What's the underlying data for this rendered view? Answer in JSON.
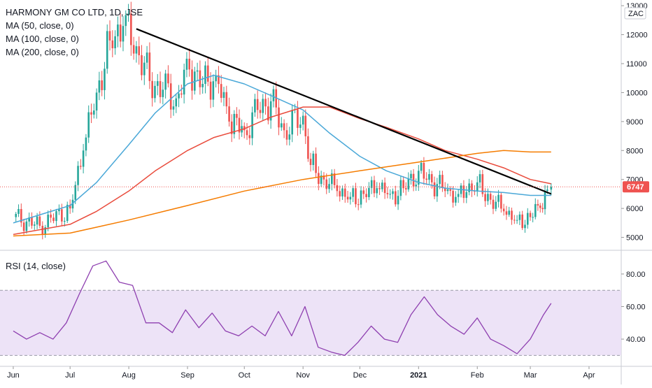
{
  "legend": {
    "title": "HARMONY GM CO LTD, 1D, JSE",
    "ma50": "MA (50, close, 0)",
    "ma100": "MA (100, close, 0)",
    "ma200": "MA (200, close, 0)",
    "rsi": "RSI (14, close)"
  },
  "currency": "ZAC",
  "last_price_label": "6747",
  "colors": {
    "up": "#26a69a",
    "down": "#ef5350",
    "ma50": "#4aa8d8",
    "ma100": "#e94b3c",
    "ma200": "#f57c00",
    "trendline": "#000000",
    "rsi_line": "#8e3fb0",
    "rsi_band": "#e9dcf5",
    "price_tag": "#ef5350"
  },
  "chart_data": [
    {
      "type": "candlestick",
      "x_axis": {
        "labels": [
          "Jun",
          "Jul",
          "Aug",
          "Sep",
          "Oct",
          "Nov",
          "Dec",
          "2021",
          "Feb",
          "Mar",
          "Apr"
        ],
        "dates": [
          "2020-06-01",
          "2020-07-01",
          "2020-08-01",
          "2020-09-01",
          "2020-10-01",
          "2020-11-01",
          "2020-12-01",
          "2021-01-01",
          "2021-02-01",
          "2021-03-01",
          "2021-04-01"
        ]
      },
      "y_ticks": [
        5000,
        6000,
        7000,
        8000,
        9000,
        10000,
        11000,
        12000,
        13000
      ],
      "ylim": [
        4700,
        13100
      ],
      "last_price": 6747,
      "close": {
        "dates": [
          "2020-06-01",
          "2020-06-15",
          "2020-07-01",
          "2020-07-08",
          "2020-07-15",
          "2020-07-22",
          "2020-07-29",
          "2020-08-05",
          "2020-08-12",
          "2020-08-19",
          "2020-08-26",
          "2020-09-02",
          "2020-09-09",
          "2020-09-16",
          "2020-09-23",
          "2020-10-01",
          "2020-10-08",
          "2020-10-15",
          "2020-10-22",
          "2020-11-01",
          "2020-11-05",
          "2020-11-12",
          "2020-11-19",
          "2020-11-26",
          "2020-12-03",
          "2020-12-10",
          "2020-12-17",
          "2020-12-24",
          "2021-01-01",
          "2021-01-08",
          "2021-01-15",
          "2021-01-22",
          "2021-02-01",
          "2021-02-08",
          "2021-02-15",
          "2021-02-22",
          "2021-03-01",
          "2021-03-05",
          "2021-03-10",
          "2021-03-12"
        ],
        "values": [
          5700,
          5400,
          6000,
          8000,
          10000,
          11800,
          12300,
          11600,
          10400,
          10100,
          9800,
          10800,
          10300,
          10600,
          9000,
          8700,
          9400,
          9700,
          8700,
          9200,
          7500,
          7000,
          6600,
          6400,
          6500,
          6700,
          6500,
          6700,
          7300,
          6900,
          6600,
          6500,
          6900,
          6300,
          5900,
          5600,
          5700,
          6100,
          6650,
          6747
        ]
      },
      "series": [
        {
          "name": "MA (50, close, 0)",
          "x": [
            "2020-06-01",
            "2020-07-01",
            "2020-07-15",
            "2020-08-01",
            "2020-08-15",
            "2020-09-01",
            "2020-09-15",
            "2020-10-01",
            "2020-10-15",
            "2020-11-01",
            "2020-11-15",
            "2020-12-01",
            "2020-12-15",
            "2021-01-01",
            "2021-01-15",
            "2021-02-01",
            "2021-02-15",
            "2021-03-01",
            "2021-03-12"
          ],
          "values": [
            5500,
            6100,
            6900,
            8200,
            9300,
            10300,
            10600,
            10300,
            9900,
            9400,
            8600,
            7800,
            7300,
            6900,
            6700,
            6600,
            6550,
            6450,
            6450
          ]
        },
        {
          "name": "MA (100, close, 0)",
          "x": [
            "2020-06-01",
            "2020-07-01",
            "2020-07-15",
            "2020-08-01",
            "2020-08-15",
            "2020-09-01",
            "2020-09-15",
            "2020-10-01",
            "2020-10-15",
            "2020-11-01",
            "2020-11-15",
            "2020-12-01",
            "2020-12-15",
            "2021-01-01",
            "2021-01-15",
            "2021-02-01",
            "2021-02-15",
            "2021-03-01",
            "2021-03-12"
          ],
          "values": [
            5100,
            5450,
            5900,
            6600,
            7300,
            8000,
            8450,
            8750,
            9150,
            9500,
            9500,
            9100,
            8800,
            8400,
            8000,
            7700,
            7400,
            7000,
            6850
          ]
        },
        {
          "name": "MA (200, close, 0)",
          "x": [
            "2020-06-01",
            "2020-07-01",
            "2020-08-01",
            "2020-09-01",
            "2020-10-01",
            "2020-11-01",
            "2020-12-01",
            "2021-01-01",
            "2021-02-01",
            "2021-02-15",
            "2021-03-01",
            "2021-03-12"
          ],
          "values": [
            5050,
            5150,
            5600,
            6100,
            6600,
            7000,
            7300,
            7600,
            7900,
            8000,
            7950,
            7950
          ]
        },
        {
          "name": "Trendline",
          "x": [
            "2020-08-05",
            "2021-03-12"
          ],
          "values": [
            12200,
            6500
          ]
        }
      ]
    },
    {
      "type": "line",
      "y_ticks": [
        40,
        60,
        80
      ],
      "ylim": [
        25,
        92
      ],
      "bands": [
        30,
        70
      ],
      "series": [
        {
          "name": "RSI (14, close)",
          "x": [
            "2020-06-01",
            "2020-06-08",
            "2020-06-15",
            "2020-06-22",
            "2020-06-29",
            "2020-07-06",
            "2020-07-13",
            "2020-07-20",
            "2020-07-27",
            "2020-08-03",
            "2020-08-10",
            "2020-08-17",
            "2020-08-24",
            "2020-08-31",
            "2020-09-07",
            "2020-09-14",
            "2020-09-21",
            "2020-09-28",
            "2020-10-05",
            "2020-10-12",
            "2020-10-19",
            "2020-10-26",
            "2020-11-02",
            "2020-11-09",
            "2020-11-16",
            "2020-11-23",
            "2020-11-30",
            "2020-12-07",
            "2020-12-14",
            "2020-12-21",
            "2020-12-28",
            "2021-01-04",
            "2021-01-11",
            "2021-01-18",
            "2021-01-25",
            "2021-02-01",
            "2021-02-08",
            "2021-02-15",
            "2021-02-22",
            "2021-03-01",
            "2021-03-08",
            "2021-03-12"
          ],
          "values": [
            45,
            40,
            44,
            40,
            50,
            68,
            85,
            88,
            75,
            73,
            50,
            50,
            44,
            58,
            47,
            56,
            45,
            42,
            48,
            42,
            57,
            42,
            60,
            35,
            32,
            30,
            38,
            48,
            40,
            38,
            55,
            66,
            55,
            48,
            43,
            53,
            40,
            36,
            31,
            40,
            55,
            62
          ]
        }
      ]
    }
  ]
}
